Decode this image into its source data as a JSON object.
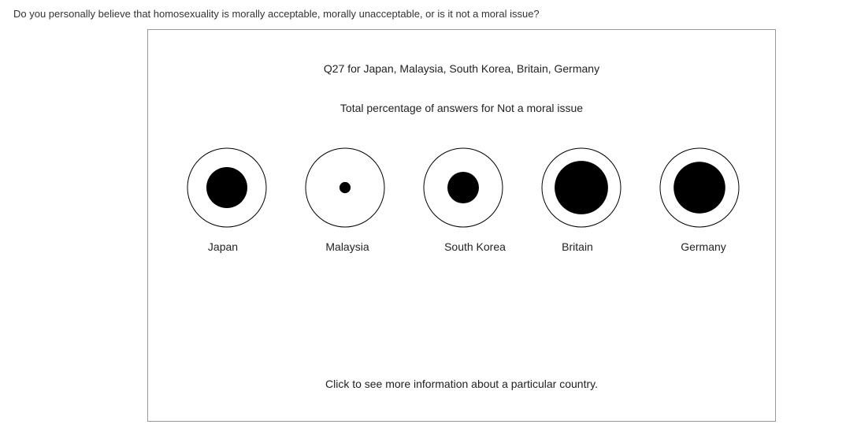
{
  "question": "Do you personally believe that homosexuality is morally acceptable, morally unacceptable, or is it not a moral issue?",
  "chart_data": {
    "type": "bubble",
    "title": "Q27 for Japan, Malaysia, South Korea, Britain, Germany",
    "subtitle": "Total percentage of answers for Not a moral issue",
    "categories": [
      "Japan",
      "Malaysia",
      "South Korea",
      "Britain",
      "Germany"
    ],
    "values": [
      27,
      2,
      16,
      46,
      43
    ],
    "value_unit": "percent",
    "max_value": 100,
    "grid": false,
    "legend": "none"
  },
  "footer": "Click to see more information about a particular country.",
  "colors": {
    "fill": "#000000",
    "outline": "#000000",
    "frame_border": "#999999",
    "text": "#222222"
  }
}
